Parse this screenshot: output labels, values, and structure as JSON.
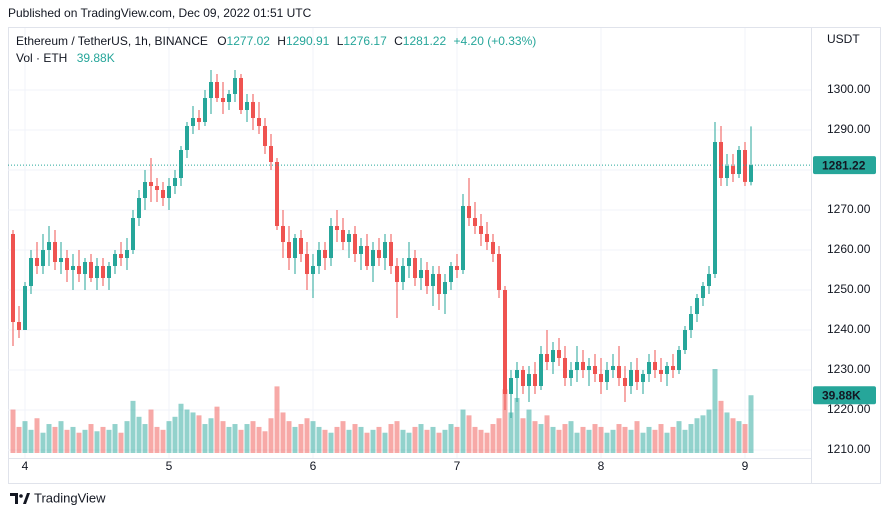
{
  "chart_data": {
    "type": "candlestick",
    "published": "Published on TradingView.com, Dec 09, 2022 01:51 UTC",
    "title": "Ethereum / TetherUS, 1h, BINANCE",
    "ohlc_letters": [
      "O",
      "H",
      "L",
      "C"
    ],
    "change": "+4.20 (+0.33%)",
    "currency": "USDT",
    "brand": "TradingView",
    "up_color": "#26a69a",
    "down_color": "#ef5350",
    "grid": true,
    "ylim": [
      1208.75,
      1315.5
    ],
    "yticks": [
      {
        "value": 1210,
        "label": "1210.00"
      },
      {
        "value": 1220,
        "label": "1220.00"
      },
      {
        "value": 1230,
        "label": "1230.00"
      },
      {
        "value": 1240,
        "label": "1240.00"
      },
      {
        "value": 1250,
        "label": "1250.00"
      },
      {
        "value": 1260,
        "label": "1260.00"
      },
      {
        "value": 1270,
        "label": "1270.00"
      },
      {
        "value": 1280,
        "label": "1280.00"
      },
      {
        "value": 1290,
        "label": "1290.00"
      },
      {
        "value": 1300,
        "label": "1300.00"
      }
    ],
    "xticks": [
      {
        "value": 2,
        "label": "4"
      },
      {
        "value": 26,
        "label": "5"
      },
      {
        "value": 50,
        "label": "6"
      },
      {
        "value": 74,
        "label": "7"
      },
      {
        "value": 98,
        "label": "8"
      },
      {
        "value": 122,
        "label": "9"
      }
    ],
    "open": [
      1264,
      1242,
      1240,
      1251,
      1258,
      1256,
      1260,
      1262,
      1257,
      1258,
      1255,
      1256,
      1254,
      1257,
      1253,
      1256,
      1253,
      1256,
      1259,
      1258,
      1260,
      1268,
      1273,
      1277,
      1276,
      1275,
      1273,
      1276,
      1278,
      1285,
      1291,
      1293,
      1292,
      1298,
      1302,
      1298,
      1297,
      1299,
      1303,
      1295,
      1297,
      1293,
      1291,
      1286,
      1282,
      1266,
      1262,
      1258,
      1263,
      1259,
      1254,
      1256,
      1260,
      1258,
      1266,
      1265,
      1262,
      1264,
      1259,
      1261,
      1256,
      1260,
      1258,
      1262,
      1256,
      1252,
      1256,
      1258,
      1253,
      1255,
      1251,
      1254,
      1249,
      1252,
      1256,
      1255,
      1271,
      1268,
      1266,
      1264,
      1262,
      1259,
      1250,
      1224,
      1228,
      1230,
      1226,
      1229,
      1226,
      1234,
      1232,
      1235,
      1233,
      1228,
      1230,
      1232,
      1230,
      1231,
      1229,
      1227,
      1230,
      1231,
      1228,
      1226,
      1230,
      1227,
      1229,
      1232,
      1230,
      1229,
      1231,
      1230,
      1235,
      1240,
      1244,
      1248,
      1251,
      1254,
      1287,
      1278,
      1281,
      1279,
      1285,
      1277.02
    ],
    "high": [
      1265,
      1246,
      1252,
      1260,
      1262,
      1264,
      1266,
      1265,
      1262,
      1260,
      1259,
      1260,
      1258,
      1259,
      1258,
      1258,
      1257,
      1260,
      1262,
      1263,
      1270,
      1275,
      1280,
      1283,
      1278,
      1277,
      1278,
      1280,
      1286,
      1292,
      1296,
      1295,
      1300,
      1305,
      1304,
      1302,
      1300,
      1305,
      1304,
      1299,
      1299,
      1297,
      1293,
      1289,
      1283,
      1270,
      1266,
      1264,
      1265,
      1262,
      1259,
      1262,
      1262,
      1268,
      1270,
      1268,
      1265,
      1266,
      1263,
      1264,
      1262,
      1263,
      1264,
      1264,
      1258,
      1258,
      1262,
      1260,
      1258,
      1257,
      1256,
      1256,
      1254,
      1257,
      1259,
      1274,
      1278,
      1272,
      1269,
      1267,
      1264,
      1261,
      1251,
      1230,
      1232,
      1231,
      1231,
      1232,
      1236,
      1240,
      1237,
      1238,
      1236,
      1232,
      1236,
      1235,
      1233,
      1234,
      1233,
      1232,
      1234,
      1236,
      1231,
      1232,
      1233,
      1230,
      1234,
      1235,
      1233,
      1232,
      1234,
      1236,
      1241,
      1246,
      1249,
      1252,
      1256,
      1292,
      1291,
      1284,
      1284,
      1286,
      1287,
      1290.91
    ],
    "low": [
      1236,
      1238,
      1240,
      1249,
      1254,
      1254,
      1256,
      1255,
      1254,
      1252,
      1250,
      1252,
      1250,
      1252,
      1250,
      1251,
      1250,
      1254,
      1256,
      1255,
      1259,
      1266,
      1270,
      1272,
      1272,
      1271,
      1270,
      1274,
      1276,
      1283,
      1289,
      1290,
      1291,
      1294,
      1297,
      1294,
      1295,
      1297,
      1294,
      1292,
      1290,
      1289,
      1284,
      1280,
      1265,
      1258,
      1255,
      1254,
      1257,
      1250,
      1248,
      1254,
      1255,
      1256,
      1262,
      1260,
      1258,
      1257,
      1255,
      1255,
      1252,
      1256,
      1255,
      1254,
      1243,
      1250,
      1253,
      1251,
      1250,
      1249,
      1246,
      1245,
      1244,
      1250,
      1253,
      1254,
      1266,
      1264,
      1261,
      1260,
      1257,
      1248,
      1220,
      1218,
      1222,
      1224,
      1222,
      1224,
      1225,
      1230,
      1229,
      1231,
      1226,
      1226,
      1227,
      1228,
      1226,
      1227,
      1224,
      1225,
      1228,
      1226,
      1222,
      1224,
      1225,
      1224,
      1227,
      1228,
      1227,
      1226,
      1228,
      1229,
      1234,
      1238,
      1242,
      1246,
      1249,
      1253,
      1276,
      1276,
      1277,
      1278,
      1276,
      1276.17
    ],
    "close": [
      1242,
      1240,
      1251,
      1258,
      1256,
      1260,
      1262,
      1257,
      1258,
      1255,
      1256,
      1254,
      1257,
      1253,
      1256,
      1253,
      1256,
      1259,
      1258,
      1260,
      1268,
      1273,
      1277,
      1276,
      1275,
      1273,
      1276,
      1278,
      1285,
      1291,
      1293,
      1292,
      1298,
      1302,
      1298,
      1297,
      1299,
      1303,
      1295,
      1297,
      1293,
      1291,
      1286,
      1282,
      1266,
      1262,
      1258,
      1263,
      1259,
      1254,
      1256,
      1260,
      1258,
      1266,
      1265,
      1262,
      1264,
      1259,
      1261,
      1256,
      1260,
      1258,
      1262,
      1256,
      1252,
      1256,
      1258,
      1253,
      1255,
      1251,
      1254,
      1249,
      1252,
      1256,
      1255,
      1271,
      1268,
      1266,
      1264,
      1262,
      1259,
      1250,
      1224,
      1228,
      1230,
      1226,
      1229,
      1226,
      1234,
      1232,
      1235,
      1233,
      1228,
      1230,
      1232,
      1230,
      1231,
      1229,
      1227,
      1230,
      1231,
      1228,
      1226,
      1230,
      1227,
      1229,
      1232,
      1230,
      1229,
      1231,
      1230,
      1235,
      1240,
      1244,
      1248,
      1251,
      1254,
      1287,
      1278,
      1281,
      1279,
      1285,
      1277.02,
      1281.22
    ],
    "volume": {
      "name": "Vol · ETH",
      "label": "39.88K",
      "values": [
        30,
        18,
        22,
        16,
        24,
        14,
        20,
        18,
        22,
        16,
        18,
        14,
        16,
        20,
        15,
        18,
        16,
        20,
        14,
        22,
        36,
        25,
        20,
        30,
        18,
        16,
        22,
        25,
        34,
        30,
        28,
        26,
        20,
        24,
        32,
        22,
        18,
        20,
        16,
        20,
        22,
        18,
        15,
        24,
        46,
        28,
        22,
        18,
        20,
        24,
        22,
        18,
        16,
        14,
        18,
        22,
        16,
        20,
        18,
        14,
        16,
        18,
        14,
        20,
        22,
        16,
        14,
        18,
        20,
        16,
        18,
        14,
        16,
        20,
        18,
        30,
        26,
        18,
        16,
        14,
        20,
        24,
        44,
        28,
        38,
        24,
        30,
        22,
        20,
        26,
        18,
        16,
        20,
        22,
        14,
        18,
        16,
        20,
        18,
        14,
        16,
        20,
        18,
        16,
        22,
        14,
        18,
        16,
        20,
        14,
        18,
        22,
        16,
        20,
        24,
        26,
        30,
        58,
        36,
        28,
        24,
        22,
        20,
        39.88
      ]
    }
  }
}
